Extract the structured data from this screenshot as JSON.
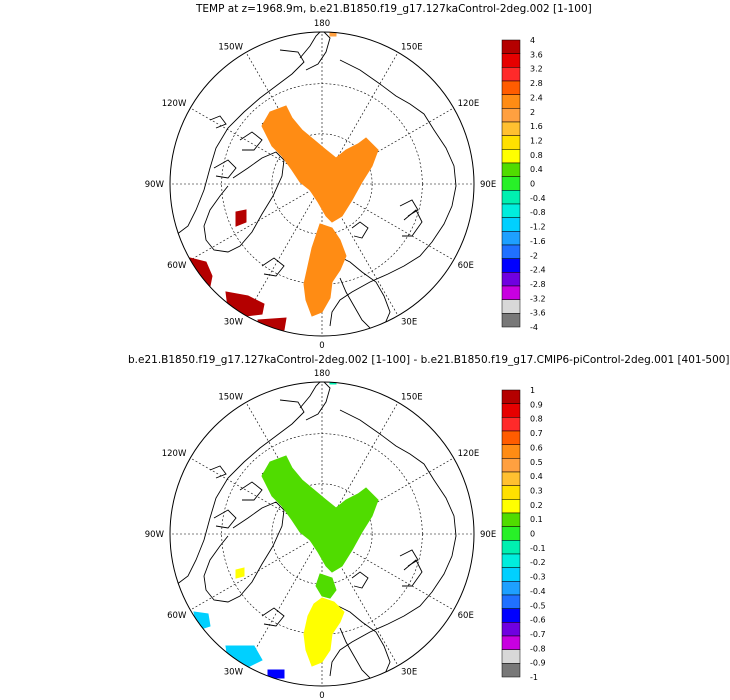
{
  "panels": [
    {
      "title": "TEMP at z=1968.9m, b.e21.B1850.f19_g17.127kaControl-2deg.002 [1-100]",
      "lon_labels": {
        "top": "180",
        "bottom": "0",
        "left": "90W",
        "right": "90E",
        "tl1": "150W",
        "tl2": "120W",
        "tr1": "150E",
        "tr2": "120E",
        "bl1": "60W",
        "bl2": "30W",
        "br1": "60E",
        "br2": "30E"
      },
      "colorbar": {
        "labels": [
          "4",
          "3.6",
          "3.2",
          "2.8",
          "2.4",
          "2",
          "1.6",
          "1.2",
          "0.8",
          "0.4",
          "0",
          "-0.4",
          "-0.8",
          "-1.2",
          "-1.6",
          "-2",
          "-2.4",
          "-2.8",
          "-3.2",
          "-3.6",
          "-4"
        ],
        "colors": [
          "#b40000",
          "#e60000",
          "#ff2a2a",
          "#ff5c00",
          "#ff8c14",
          "#ffa040",
          "#ffc030",
          "#ffe000",
          "#ffff00",
          "#50dc00",
          "#28f028",
          "#00f0b0",
          "#00eedd",
          "#00d0ff",
          "#1ea0ff",
          "#2070ff",
          "#0000ff",
          "#7000e0",
          "#c800e0",
          "#d8d8d8",
          "#787878"
        ]
      }
    },
    {
      "title": "b.e21.B1850.f19_g17.127kaControl-2deg.002 [1-100] - b.e21.B1850.f19_g17.CMIP6-piControl-2deg.001 [401-500]",
      "lon_labels": {
        "top": "180",
        "bottom": "0",
        "left": "90W",
        "right": "90E",
        "tl1": "150W",
        "tl2": "120W",
        "tr1": "150E",
        "tr2": "120E",
        "bl1": "60W",
        "bl2": "30W",
        "br1": "60E",
        "br2": "30E"
      },
      "colorbar": {
        "labels": [
          "1",
          "0.9",
          "0.8",
          "0.7",
          "0.6",
          "0.5",
          "0.4",
          "0.3",
          "0.2",
          "0.1",
          "0",
          "-0.1",
          "-0.2",
          "-0.3",
          "-0.4",
          "-0.5",
          "-0.6",
          "-0.7",
          "-0.8",
          "-0.9",
          "-1"
        ],
        "colors": [
          "#b40000",
          "#e60000",
          "#ff2a2a",
          "#ff5c00",
          "#ff8c14",
          "#ffa040",
          "#ffc030",
          "#ffe000",
          "#ffff00",
          "#50dc00",
          "#28f028",
          "#00f0b0",
          "#00eedd",
          "#00d0ff",
          "#1ea0ff",
          "#2070ff",
          "#0000ff",
          "#7000e0",
          "#c800e0",
          "#d8d8d8",
          "#787878"
        ]
      }
    }
  ]
}
